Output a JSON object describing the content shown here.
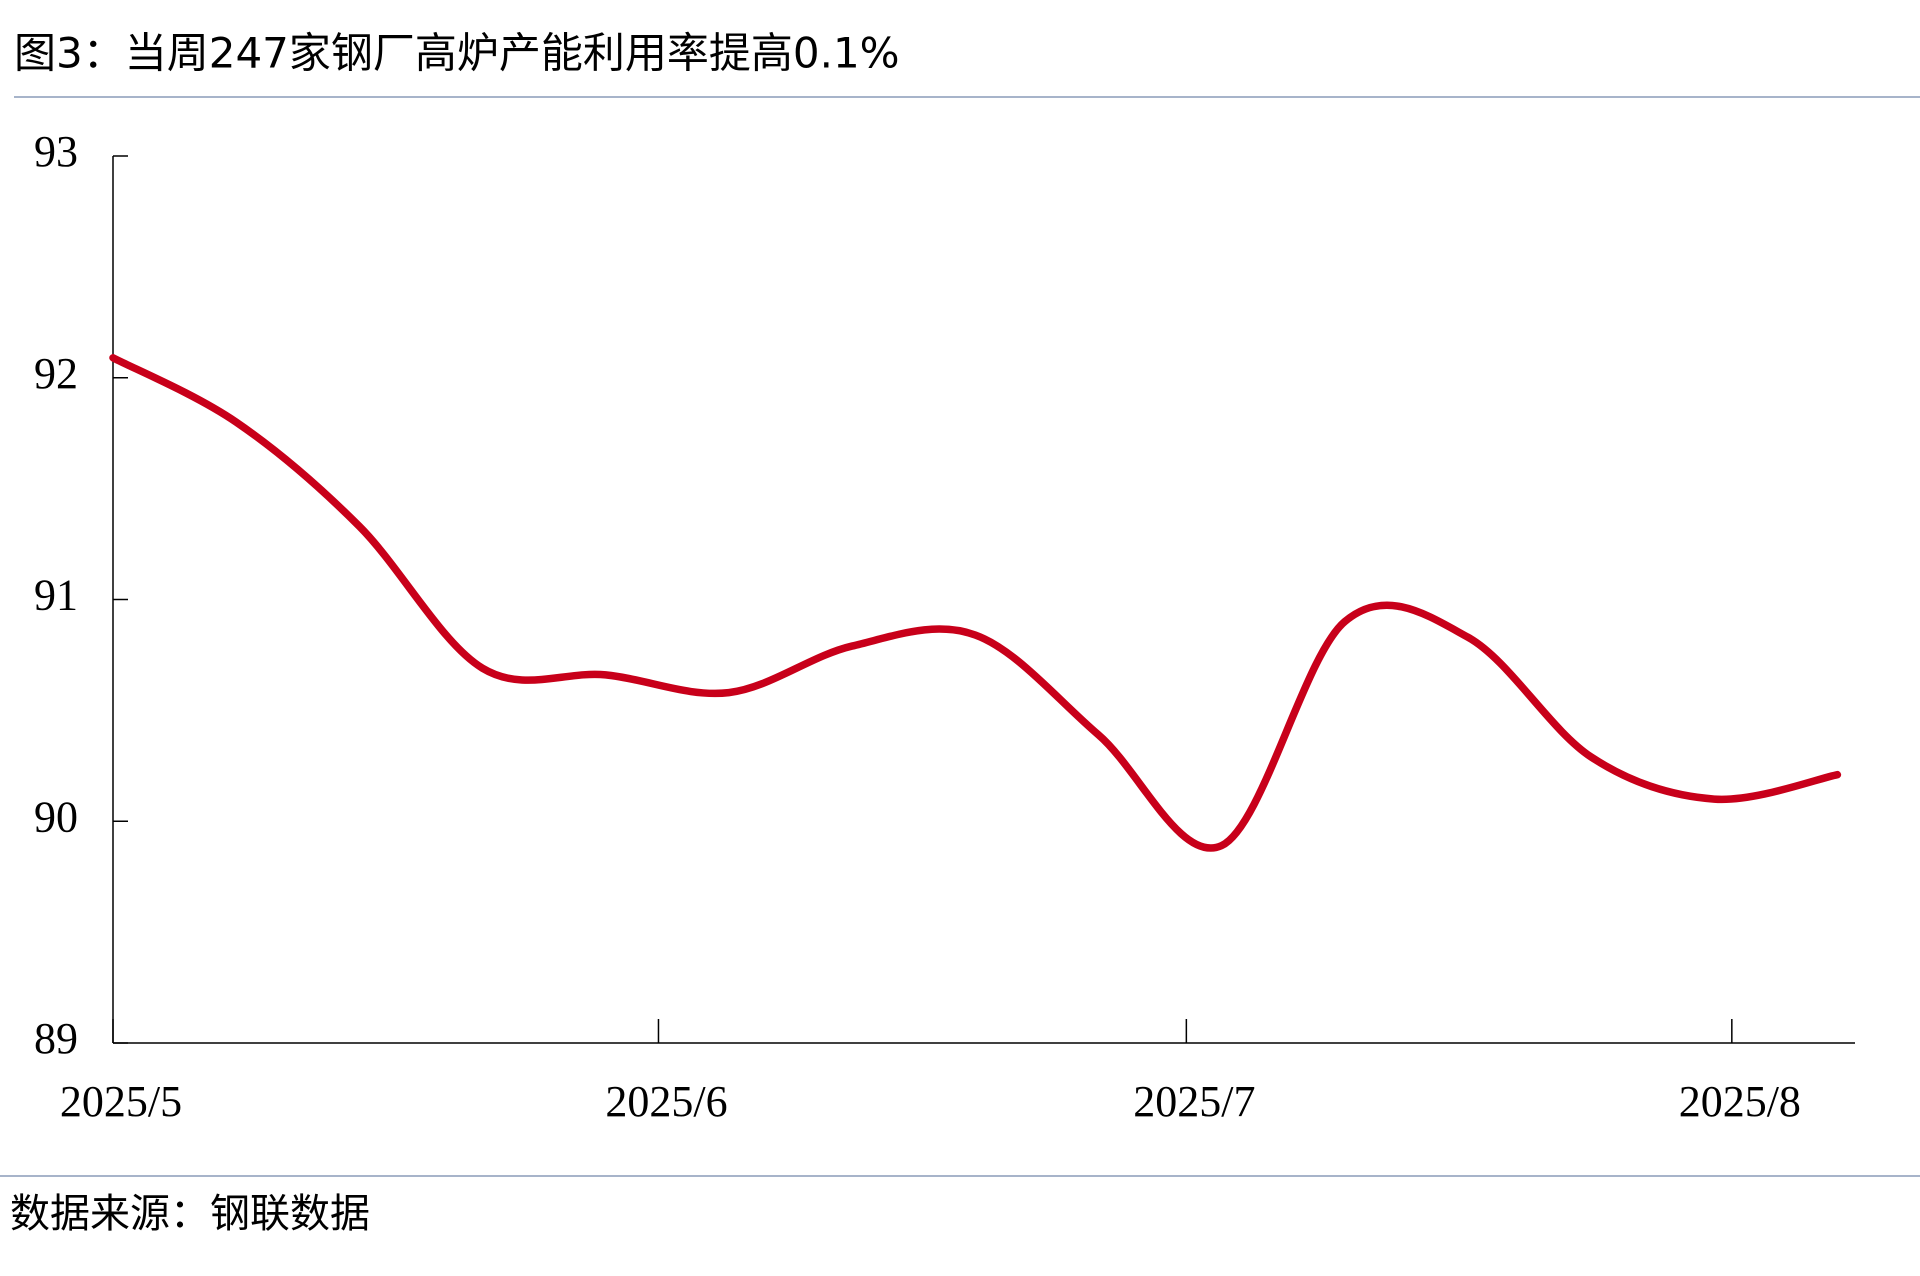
{
  "chart_data": {
    "type": "line",
    "title": "图3：当周247家钢厂高炉产能利用率提高0.1%",
    "source": "数据来源：钢联数据",
    "x": [
      "2025-05-01",
      "2025-05-08",
      "2025-05-15",
      "2025-05-22",
      "2025-05-29",
      "2025-06-05",
      "2025-06-12",
      "2025-06-19",
      "2025-06-26",
      "2025-07-03",
      "2025-07-10",
      "2025-07-17",
      "2025-07-24",
      "2025-07-31",
      "2025-08-07"
    ],
    "series": [
      {
        "color": "#c8001a",
        "values": [
          92.09,
          91.8,
          91.33,
          90.69,
          90.66,
          90.58,
          90.79,
          90.84,
          90.39,
          89.89,
          90.9,
          90.83,
          90.29,
          90.1,
          90.21
        ]
      }
    ],
    "xlim": [
      "2025-05-01",
      "2025-08-08"
    ],
    "xticks": [
      {
        "value": "2025-05-01",
        "label": "2025/5"
      },
      {
        "value": "2025-06-01",
        "label": "2025/6"
      },
      {
        "value": "2025-07-01",
        "label": "2025/7"
      },
      {
        "value": "2025-08-01",
        "label": "2025/8"
      }
    ],
    "ylim": [
      89,
      93
    ],
    "yticks": [
      89,
      90,
      91,
      92,
      93
    ],
    "grid": false
  }
}
